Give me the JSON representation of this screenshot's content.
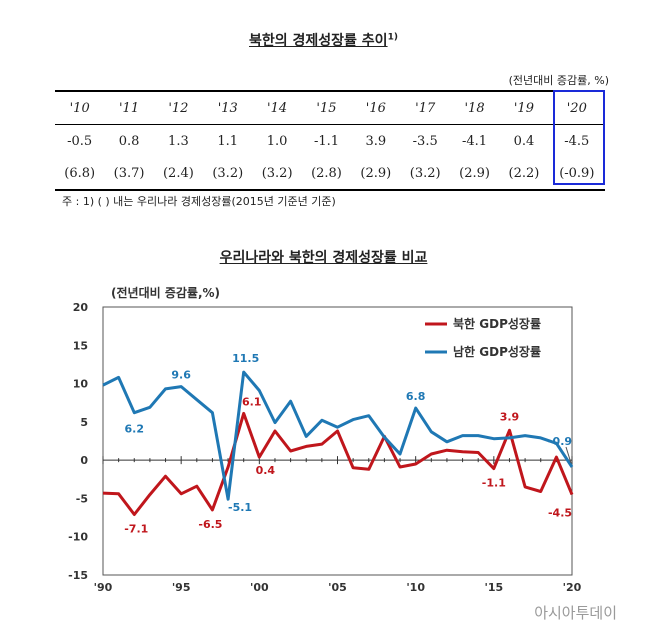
{
  "table": {
    "title": "북한의 경제성장률 추이",
    "title_sup": "1)",
    "unit": "(전년대비 증감률, %)",
    "years": [
      "'10",
      "'11",
      "'12",
      "'13",
      "'14",
      "'15",
      "'16",
      "'17",
      "'18",
      "'19",
      "'20"
    ],
    "growth": [
      "-0.5",
      "0.8",
      "1.3",
      "1.1",
      "1.0",
      "-1.1",
      "3.9",
      "-3.5",
      "-4.1",
      "0.4",
      "-4.5"
    ],
    "growth_paren": [
      "(6.8)",
      "(3.7)",
      "(2.4)",
      "(3.2)",
      "(3.2)",
      "(2.8)",
      "(2.9)",
      "(3.2)",
      "(2.9)",
      "(2.2)",
      "(-0.9)"
    ],
    "note": "주 : 1) (   ) 내는 우리나라 경제성장률(2015년 기준년 기준)"
  },
  "chart_title": "우리나라와 북한의 경제성장률 비교",
  "chart_data": {
    "type": "line",
    "ylabel": "(전년대비 증감률,%)",
    "ylim": [
      -15,
      20
    ],
    "yticks": [
      20,
      15,
      10,
      5,
      0,
      -5,
      -10,
      -15
    ],
    "xlim": [
      1990,
      2020
    ],
    "xticks": [
      1990,
      1995,
      2000,
      2005,
      2010,
      2015,
      2020
    ],
    "xtick_labels": [
      "'90",
      "'95",
      "'00",
      "'05",
      "'10",
      "'15",
      "'20"
    ],
    "legend_position": "top-right",
    "x": [
      1990,
      1991,
      1992,
      1993,
      1994,
      1995,
      1996,
      1997,
      1998,
      1999,
      2000,
      2001,
      2002,
      2003,
      2004,
      2005,
      2006,
      2007,
      2008,
      2009,
      2010,
      2011,
      2012,
      2013,
      2014,
      2015,
      2016,
      2017,
      2018,
      2019,
      2020
    ],
    "series": [
      {
        "name": "북한 GDP성장률",
        "color": "#c0161c",
        "values": [
          -4.3,
          -4.4,
          -7.1,
          -4.5,
          -2.1,
          -4.4,
          -3.4,
          -6.5,
          -0.9,
          6.1,
          0.4,
          3.8,
          1.2,
          1.8,
          2.1,
          3.8,
          -1.0,
          -1.2,
          3.1,
          -0.9,
          -0.5,
          0.8,
          1.3,
          1.1,
          1.0,
          -1.1,
          3.9,
          -3.5,
          -4.1,
          0.4,
          -4.5
        ]
      },
      {
        "name": "남한 GDP성장률",
        "color": "#1f78b4",
        "values": [
          9.8,
          10.8,
          6.2,
          6.9,
          9.3,
          9.6,
          7.9,
          6.2,
          -5.1,
          11.5,
          9.1,
          4.9,
          7.7,
          3.1,
          5.2,
          4.3,
          5.3,
          5.8,
          3.0,
          0.8,
          6.8,
          3.7,
          2.4,
          3.2,
          3.2,
          2.8,
          2.9,
          3.2,
          2.9,
          2.2,
          -0.9
        ]
      }
    ],
    "labels": [
      {
        "series": 1,
        "x": 1992,
        "text": "6.2"
      },
      {
        "series": 1,
        "x": 1995,
        "text": "9.6"
      },
      {
        "series": 1,
        "x": 1998,
        "text": "-5.1"
      },
      {
        "series": 1,
        "x": 1999,
        "text": "11.5"
      },
      {
        "series": 1,
        "x": 2010,
        "text": "6.8"
      },
      {
        "series": 1,
        "x": 2020,
        "text": "-0.9"
      },
      {
        "series": 0,
        "x": 1992,
        "text": "-7.1"
      },
      {
        "series": 0,
        "x": 1997,
        "text": "-6.5"
      },
      {
        "series": 0,
        "x": 1999,
        "text": "6.1"
      },
      {
        "series": 0,
        "x": 2000,
        "text": "0.4"
      },
      {
        "series": 0,
        "x": 2015,
        "text": "-1.1"
      },
      {
        "series": 0,
        "x": 2016,
        "text": "3.9"
      },
      {
        "series": 0,
        "x": 2020,
        "text": "-4.5"
      }
    ]
  },
  "watermark": "아시아투데이"
}
